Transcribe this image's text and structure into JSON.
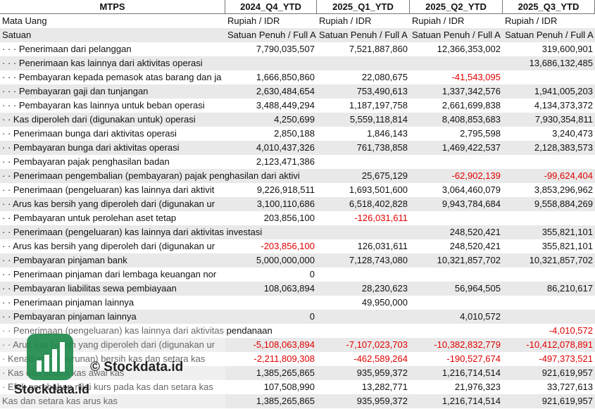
{
  "header": [
    "MTPS",
    "2024_Q4_YTD",
    "2025_Q1_YTD",
    "2025_Q2_YTD",
    "2025_Q3_YTD"
  ],
  "rows": [
    [
      "Mata Uang",
      "Rupiah / IDR",
      "Rupiah / IDR",
      "Rupiah / IDR",
      "Rupiah / IDR"
    ],
    [
      "Satuan",
      "Satuan Penuh / Full A",
      "Satuan Penuh / Full A",
      "Satuan Penuh / Full A",
      "Satuan Penuh / Full A"
    ],
    [
      "· · · Penerimaan dari pelanggan",
      "7,790,035,507",
      "7,521,887,860",
      "12,366,353,002",
      "319,600,901"
    ],
    [
      "· · · Penerimaan kas lainnya dari aktivitas operasi",
      null,
      null,
      null,
      "13,686,132,485"
    ],
    [
      "· · · Pembayaran kepada pemasok atas barang dan ja",
      "1,666,850,860",
      "22,080,675",
      "-41,543,095",
      null
    ],
    [
      "· · · Pembayaran gaji dan tunjangan",
      "2,630,484,654",
      "753,490,613",
      "1,337,342,576",
      "1,941,005,203"
    ],
    [
      "· · · Pembayaran kas lainnya untuk beban operasi",
      "3,488,449,294",
      "1,187,197,758",
      "2,661,699,838",
      "4,134,373,372"
    ],
    [
      "· · Kas diperoleh dari (digunakan untuk) operasi",
      "4,250,699",
      "5,559,118,814",
      "8,408,853,683",
      "7,930,354,811"
    ],
    [
      "· · Penerimaan bunga dari aktivitas operasi",
      "2,850,188",
      "1,846,143",
      "2,795,598",
      "3,240,473"
    ],
    [
      "· · Pembayaran bunga dari aktivitas operasi",
      "4,010,437,326",
      "761,738,858",
      "1,469,422,537",
      "2,128,383,573"
    ],
    [
      "· · Pembayaran pajak penghasilan badan",
      "2,123,471,386",
      null,
      null,
      null
    ],
    [
      "· · Penerimaan pengembalian (pembayaran) pajak penghasilan dari aktivi",
      null,
      "25,675,129",
      "-62,902,139",
      "-99,624,404"
    ],
    [
      "· · Penerimaan (pengeluaran) kas lainnya dari aktivit",
      "9,226,918,511",
      "1,693,501,600",
      "3,064,460,079",
      "3,853,296,962"
    ],
    [
      "· · Arus kas bersih yang diperoleh dari (digunakan ur",
      "3,100,110,686",
      "6,518,402,828",
      "9,943,784,684",
      "9,558,884,269"
    ],
    [
      "· · Pembayaran untuk perolehan aset tetap",
      "203,856,100",
      "-126,031,611",
      null,
      null
    ],
    [
      "· · Penerimaan (pengeluaran) kas lainnya dari aktivitas investasi",
      null,
      null,
      "248,520,421",
      "355,821,101"
    ],
    [
      "· · Arus kas bersih yang diperoleh dari (digunakan ur",
      "-203,856,100",
      "126,031,611",
      "248,520,421",
      "355,821,101"
    ],
    [
      "· · Pembayaran pinjaman bank",
      "5,000,000,000",
      "7,128,743,080",
      "10,321,857,702",
      "10,321,857,702"
    ],
    [
      "· · Penerimaan pinjaman dari lembaga keuangan nor",
      "0",
      null,
      null,
      null
    ],
    [
      "· · Pembayaran liabilitas sewa pembiayaan",
      "108,063,894",
      "28,230,623",
      "56,964,505",
      "86,210,617"
    ],
    [
      "· · Penerimaan pinjaman lainnya",
      null,
      "49,950,000",
      null,
      null
    ],
    [
      "· · Pembayaran pinjaman lainnya",
      "0",
      null,
      "4,010,572",
      null
    ],
    [
      "· · Penerimaan (pengeluaran) kas lainnya dari aktivitas pendanaan",
      null,
      null,
      null,
      "-4,010,572"
    ],
    [
      "· · Arus kas bersih yang diperoleh dari (digunakan ur",
      "-5,108,063,894",
      "-7,107,023,703",
      "-10,382,832,779",
      "-10,412,078,891"
    ],
    [
      "· Kenaikan (penurunan) bersih kas dan setara kas",
      "-2,211,809,308",
      "-462,589,264",
      "-190,527,674",
      "-497,373,521"
    ],
    [
      "· Kas dan setara kas awal kas",
      "1,385,265,865",
      "935,959,372",
      "1,216,714,514",
      "921,619,957"
    ],
    [
      "· Efek perubahan nilai kurs pada kas dan setara kas",
      "107,508,990",
      "13,282,771",
      "21,976,323",
      "33,727,613"
    ],
    [
      "Kas dan setara kas arus kas",
      "1,385,265,865",
      "935,959,372",
      "1,216,714,514",
      "921,619,957"
    ]
  ],
  "watermark": {
    "text": "© Stockdata.id",
    "logo_text": "Stockdata.id"
  }
}
